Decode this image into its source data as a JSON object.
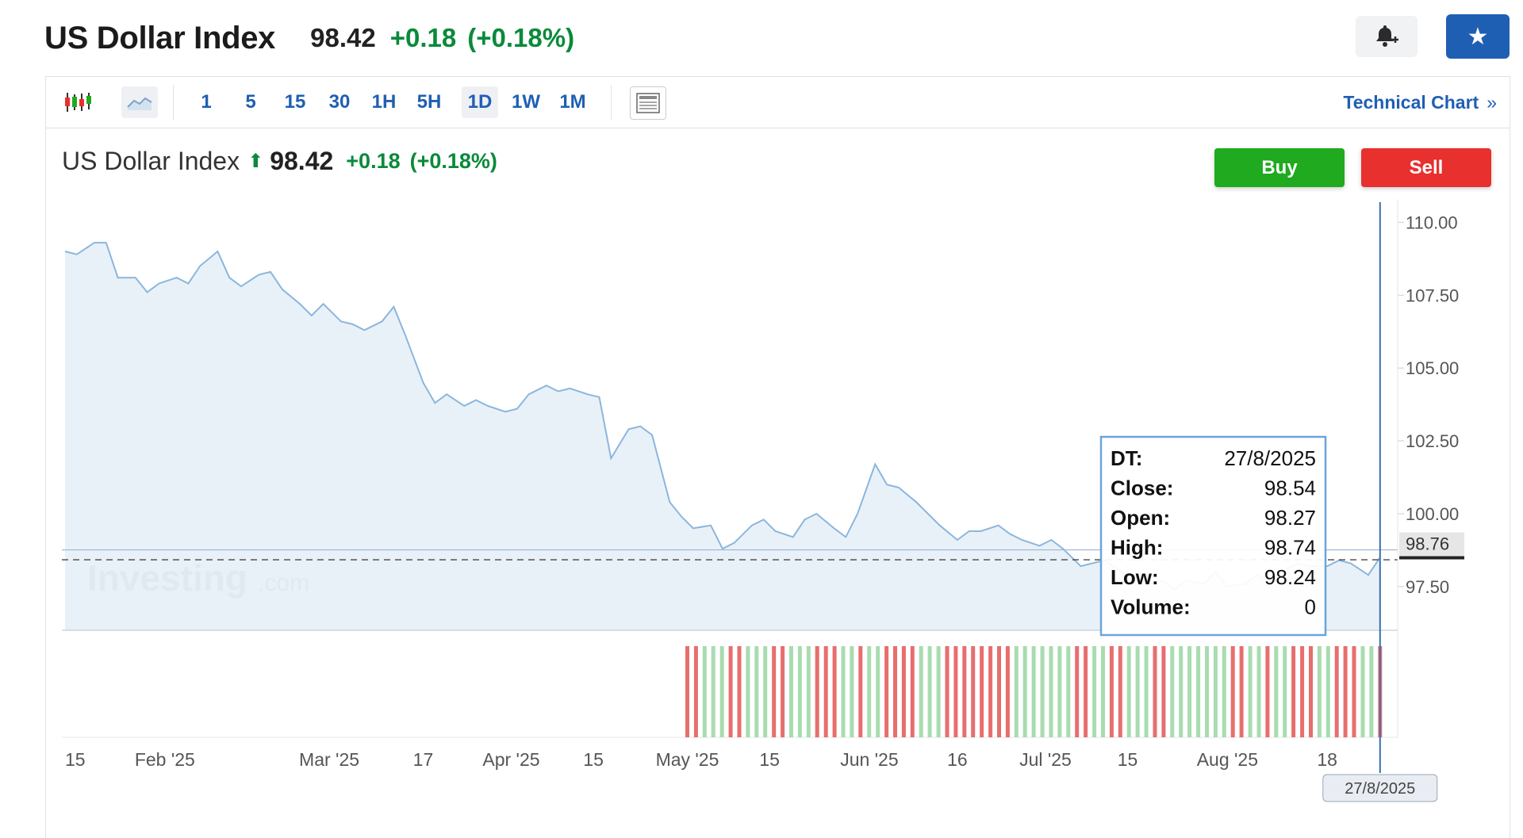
{
  "header": {
    "title": "US Dollar Index",
    "price": "98.42",
    "change": "+0.18",
    "change_pct": "(+0.18%)",
    "alert_icon": "bell-plus-icon",
    "watchlist_icon": "star-icon"
  },
  "toolbar": {
    "icons": [
      "candlestick-icon",
      "area-chart-icon",
      "layout-icon"
    ],
    "intervals": [
      "1",
      "5",
      "15",
      "30",
      "1H",
      "5H",
      "1D",
      "1W",
      "1M"
    ],
    "selected_interval": "1D",
    "technical_chart": "Technical Chart",
    "technical_chart_chevron": "»"
  },
  "chart_header": {
    "name": "US Dollar Index",
    "arrow": "⬆",
    "price": "98.42",
    "change": "+0.18",
    "change_pct": "(+0.18%)"
  },
  "actions": {
    "buy": "Buy",
    "sell": "Sell"
  },
  "watermark": "Investing.com",
  "tooltip": {
    "rows": [
      {
        "label": "DT:",
        "value": "27/8/2025"
      },
      {
        "label": "Close:",
        "value": "98.54"
      },
      {
        "label": "Open:",
        "value": "98.27"
      },
      {
        "label": "High:",
        "value": "98.74"
      },
      {
        "label": "Low:",
        "value": "98.24"
      },
      {
        "label": "Volume:",
        "value": "0"
      }
    ]
  },
  "crosshair_date": "27/8/2025",
  "colors": {
    "line": "#8bb6dd",
    "area": "#e5eef7",
    "up": "#0a8a3a",
    "vol_up": "#a8dcb0",
    "vol_down": "#e86e6e",
    "accent": "#1f5fb3"
  },
  "chart_data": {
    "type": "area",
    "ylim": [
      96.0,
      110.5
    ],
    "yticks": [
      "110.00",
      "107.50",
      "105.00",
      "102.50",
      "100.00",
      "97.50"
    ],
    "ytick_values": [
      110.0,
      107.5,
      105.0,
      102.5,
      100.0,
      97.5
    ],
    "current_price_label": "98.76",
    "current_price": 98.76,
    "dashed_reference": 98.42,
    "xtick_labels": [
      {
        "label": "15",
        "date": "2025-01-15"
      },
      {
        "label": "Feb '25",
        "date": "2025-02-01"
      },
      {
        "label": "Mar '25",
        "date": "2025-03-01"
      },
      {
        "label": "17",
        "date": "2025-03-17"
      },
      {
        "label": "Apr '25",
        "date": "2025-04-01"
      },
      {
        "label": "15",
        "date": "2025-04-15"
      },
      {
        "label": "May '25",
        "date": "2025-05-01"
      },
      {
        "label": "15",
        "date": "2025-05-15"
      },
      {
        "label": "Jun '25",
        "date": "2025-06-01"
      },
      {
        "label": "16",
        "date": "2025-06-16"
      },
      {
        "label": "Jul '25",
        "date": "2025-07-01"
      },
      {
        "label": "15",
        "date": "2025-07-15"
      },
      {
        "label": "Aug '25",
        "date": "2025-08-01"
      },
      {
        "label": "18",
        "date": "2025-08-18"
      }
    ],
    "xlim": [
      "2025-01-15",
      "2025-08-30"
    ],
    "crosshair": "2025-08-27",
    "series": [
      {
        "points": [
          [
            "2025-01-15",
            109.0
          ],
          [
            "2025-01-17",
            108.9
          ],
          [
            "2025-01-20",
            109.3
          ],
          [
            "2025-01-22",
            109.3
          ],
          [
            "2025-01-24",
            108.1
          ],
          [
            "2025-01-27",
            108.1
          ],
          [
            "2025-01-29",
            107.6
          ],
          [
            "2025-01-31",
            107.9
          ],
          [
            "2025-02-03",
            108.1
          ],
          [
            "2025-02-05",
            107.9
          ],
          [
            "2025-02-07",
            108.5
          ],
          [
            "2025-02-10",
            109.0
          ],
          [
            "2025-02-12",
            108.1
          ],
          [
            "2025-02-14",
            107.8
          ],
          [
            "2025-02-17",
            108.2
          ],
          [
            "2025-02-19",
            108.3
          ],
          [
            "2025-02-21",
            107.7
          ],
          [
            "2025-02-24",
            107.2
          ],
          [
            "2025-02-26",
            106.8
          ],
          [
            "2025-02-28",
            107.2
          ],
          [
            "2025-03-03",
            106.6
          ],
          [
            "2025-03-05",
            106.5
          ],
          [
            "2025-03-07",
            106.3
          ],
          [
            "2025-03-10",
            106.6
          ],
          [
            "2025-03-12",
            107.1
          ],
          [
            "2025-03-14",
            106.1
          ],
          [
            "2025-03-17",
            104.5
          ],
          [
            "2025-03-19",
            103.8
          ],
          [
            "2025-03-21",
            104.1
          ],
          [
            "2025-03-24",
            103.7
          ],
          [
            "2025-03-26",
            103.9
          ],
          [
            "2025-03-28",
            103.7
          ],
          [
            "2025-03-31",
            103.5
          ],
          [
            "2025-04-02",
            103.6
          ],
          [
            "2025-04-04",
            104.1
          ],
          [
            "2025-04-07",
            104.4
          ],
          [
            "2025-04-09",
            104.2
          ],
          [
            "2025-04-11",
            104.3
          ],
          [
            "2025-04-14",
            104.1
          ],
          [
            "2025-04-16",
            104.0
          ],
          [
            "2025-04-18",
            101.9
          ],
          [
            "2025-04-21",
            102.9
          ],
          [
            "2025-04-23",
            103.0
          ],
          [
            "2025-04-25",
            102.7
          ],
          [
            "2025-04-28",
            100.4
          ],
          [
            "2025-04-30",
            99.9
          ],
          [
            "2025-05-02",
            99.5
          ],
          [
            "2025-05-05",
            99.6
          ],
          [
            "2025-05-07",
            98.8
          ],
          [
            "2025-05-09",
            99.0
          ],
          [
            "2025-05-12",
            99.6
          ],
          [
            "2025-05-14",
            99.8
          ],
          [
            "2025-05-16",
            99.4
          ],
          [
            "2025-05-19",
            99.2
          ],
          [
            "2025-05-21",
            99.8
          ],
          [
            "2025-05-23",
            100.0
          ],
          [
            "2025-05-26",
            99.5
          ],
          [
            "2025-05-28",
            99.2
          ],
          [
            "2025-05-30",
            100.0
          ],
          [
            "2025-06-02",
            101.7
          ],
          [
            "2025-06-04",
            101.0
          ],
          [
            "2025-06-06",
            100.9
          ],
          [
            "2025-06-09",
            100.4
          ],
          [
            "2025-06-11",
            100.0
          ],
          [
            "2025-06-13",
            99.6
          ],
          [
            "2025-06-16",
            99.1
          ],
          [
            "2025-06-18",
            99.4
          ],
          [
            "2025-06-20",
            99.4
          ],
          [
            "2025-06-23",
            99.6
          ],
          [
            "2025-06-25",
            99.3
          ],
          [
            "2025-06-27",
            99.1
          ],
          [
            "2025-06-30",
            98.9
          ],
          [
            "2025-07-02",
            99.1
          ],
          [
            "2025-07-04",
            98.8
          ],
          [
            "2025-07-07",
            98.2
          ],
          [
            "2025-07-09",
            98.3
          ],
          [
            "2025-07-11",
            98.4
          ],
          [
            "2025-07-14",
            98.0
          ],
          [
            "2025-07-16",
            97.6
          ],
          [
            "2025-07-18",
            97.6
          ],
          [
            "2025-07-21",
            97.7
          ],
          [
            "2025-07-23",
            97.4
          ],
          [
            "2025-07-25",
            97.7
          ],
          [
            "2025-07-28",
            97.6
          ],
          [
            "2025-07-30",
            98.0
          ],
          [
            "2025-08-01",
            97.5
          ],
          [
            "2025-08-04",
            97.6
          ],
          [
            "2025-08-06",
            97.9
          ],
          [
            "2025-08-08",
            97.7
          ],
          [
            "2025-08-11",
            98.1
          ],
          [
            "2025-08-13",
            98.3
          ],
          [
            "2025-08-15",
            98.2
          ],
          [
            "2025-08-18",
            98.2
          ],
          [
            "2025-08-20",
            98.4
          ],
          [
            "2025-08-22",
            98.3
          ],
          [
            "2025-08-25",
            97.9
          ],
          [
            "2025-08-27",
            98.5
          ]
        ]
      }
    ],
    "volume": {
      "note_colors": "u = up (green), d = down (red)",
      "bars": "dduuudduuudduuuddduuduudddduuudddddddduuuuuuudduudduuudduuuuuuudduuduuddduuddduud"
    }
  }
}
